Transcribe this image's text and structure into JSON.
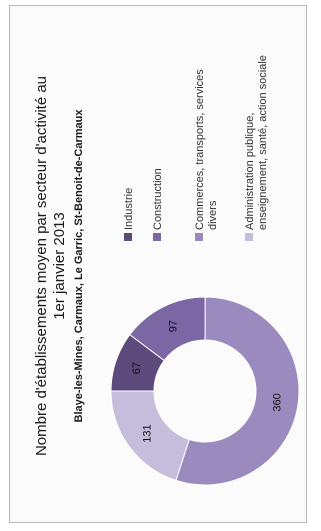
{
  "chart_data": {
    "type": "pie",
    "donut": true,
    "title_lines": [
      "Nombre d'établissements moyen par secteur d'activité au",
      "1er janvier 2013"
    ],
    "subtitle": "Blaye-les-Mines, Carmaux, Le Garric, St-Benoit-de-Carmaux",
    "legend_position": "right",
    "categories": [
      "Industrie",
      "Construction",
      "Commerces, transports, services divers",
      "Administration publique, enseignement, santé, action sociale"
    ],
    "legend_lines": [
      [
        "Industrie"
      ],
      [
        "Construction"
      ],
      [
        "Commerces, transports, services",
        "divers"
      ],
      [
        "Administration publique,",
        "enseignement, santé, action sociale"
      ]
    ],
    "values": [
      67,
      97,
      360,
      131
    ],
    "colors": [
      "#5c4a7d",
      "#7a67a3",
      "#9b8abe",
      "#c6bcdb"
    ]
  }
}
